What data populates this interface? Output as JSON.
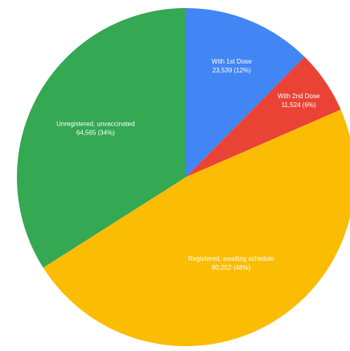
{
  "chart_data": {
    "type": "pie",
    "title": "",
    "start_angle_deg": 0,
    "direction": "clockwise",
    "slices": [
      {
        "label": "With 1st Dose",
        "value": 23539,
        "value_text": "23,539 (12%)",
        "color": "#4285f4"
      },
      {
        "label": "With 2nd Dose",
        "value": 11524,
        "value_text": "11,524 (6%)",
        "color": "#ea4335"
      },
      {
        "label": "Registered, awaiting schedule",
        "value": 90252,
        "value_text": "90,252 (48%)",
        "color": "#fbbc04"
      },
      {
        "label": "Unregistered, unvaccinated",
        "value": 64565,
        "value_text": "64,565 (34%)",
        "color": "#34a853"
      }
    ]
  }
}
